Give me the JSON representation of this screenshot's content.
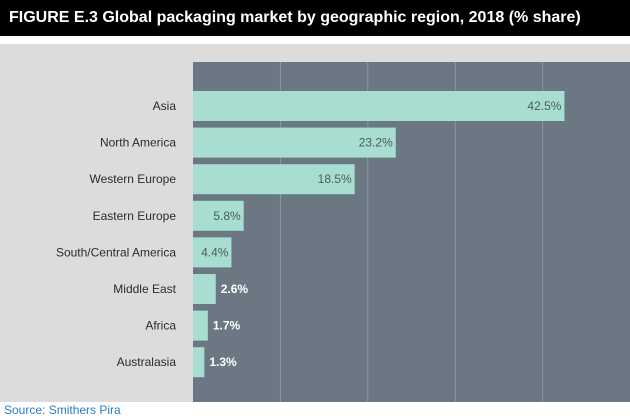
{
  "title": "FIGURE E.3 Global packaging market by geographic region, 2018 (% share)",
  "source": "Source: Smithers Pira",
  "colors": {
    "title_bg": "#000000",
    "title_text": "#ffffff",
    "outer_bg": "#dcdcdc",
    "plot_bg": "#6b7782",
    "grid": "#8d98a2",
    "bar": "#a8ddd1",
    "value_text_inside": "#4a5a5c",
    "value_text_outside": "#ffffff",
    "source_text": "#2a7cc4"
  },
  "chart_data": {
    "type": "bar",
    "orientation": "horizontal",
    "title": "FIGURE E.3 Global packaging market by geographic region, 2018 (% share)",
    "xlabel": "",
    "ylabel": "",
    "categories": [
      "Asia",
      "North America",
      "Western Europe",
      "Eastern Europe",
      "South/Central America",
      "Middle East",
      "Africa",
      "Australasia"
    ],
    "values": [
      42.5,
      23.2,
      18.5,
      5.8,
      4.4,
      2.6,
      1.7,
      1.3
    ],
    "value_labels": [
      "42.5%",
      "23.2%",
      "18.5%",
      "5.8%",
      "4.4%",
      "2.6%",
      "1.7%",
      "1.3%"
    ],
    "xlim": [
      0,
      50
    ],
    "grid": true
  }
}
